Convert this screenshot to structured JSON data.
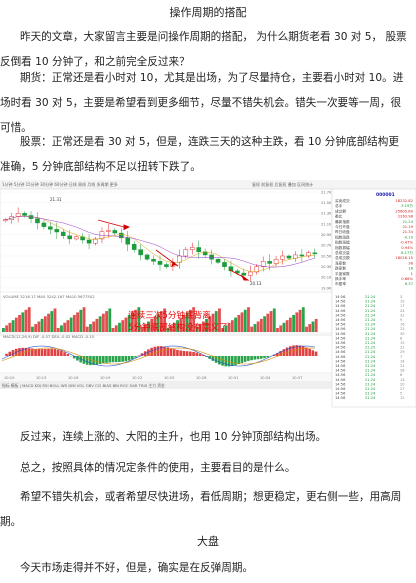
{
  "article": {
    "title": "操作周期的搭配",
    "p1": "昨天的文章，大家留言主要是问操作周期的搭配， 为什么期货老看 30 对 5， 股票反倒看 10 分钟了，和之前完全反过来？",
    "p2": "期货：正常还是看小时对 10，尤其是出场，为了尽量持仓，主要看小时对 10。进场时看 30 对 5，主要是希望看到更多细节，尽量不错失机会。错失一次要等一周，很可惜。",
    "p3": "股票：正常还是看 30 对 5，但是，连跌三天的这种主跌，看 10 分钟底部结构更准确，5 分钟底部结构不足以扭转下跌了。",
    "p4": "反过来，连续上涨的、大阳的主升，也用 10 分钟顶部结构出场。",
    "p5": "总之，按照具体的情况定条件的使用，主要看目的是什么。",
    "p6": "希望不错失机会，或者希望尽快进场，看低周期；想更稳定，更右侧一些，用高周期。",
    "section": "大盘",
    "p7": "今天市场走得并不好，但是，确实是在反弹周期。"
  },
  "chart": {
    "annotation_line1": "连续三次5分钟底背离",
    "annotation_line2": "5分钟底部结构没有意义了",
    "price_high_label": "21.31",
    "price_low_label": "20.13",
    "price_series": [
      21.18,
      21.24,
      21.3,
      21.26,
      21.2,
      21.12,
      21.05,
      21.0,
      20.95,
      20.88,
      20.82,
      20.86,
      20.8,
      20.74,
      20.82,
      20.96,
      20.98,
      20.93,
      20.84,
      20.72,
      20.62,
      20.52,
      20.44,
      20.4,
      20.34,
      20.3,
      20.38,
      20.5,
      20.62,
      20.66,
      20.58,
      20.52,
      20.44,
      20.38,
      20.3,
      20.22,
      20.18,
      20.14,
      20.2,
      20.3,
      20.4,
      20.36,
      20.44,
      20.5,
      20.46,
      20.52,
      20.5,
      20.56,
      20.54
    ],
    "y_ticks": [
      "21.70",
      "21.50",
      "21.30",
      "21.10",
      "20.90",
      "20.70",
      "20.50",
      "20.30",
      "20.10",
      "19.90"
    ],
    "indicator_labels": {
      "volume": "VOLUME  3216.17 MA5 3242.167 MA10 5677502",
      "macd": "MACD(12,26,9)  DIF -0.07  DEA -0.02  MACD -0.10"
    },
    "side_panel": {
      "code": "000001",
      "rows": [
        [
          "买卖成交",
          "18232.82"
        ],
        [
          "总手",
          "3.19万"
        ],
        [
          "成交额",
          "25605.89"
        ],
        [
          "委比",
          "2263.98"
        ],
        [
          "最新指数",
          "21.24"
        ],
        [
          "今日开盘",
          "21.19"
        ],
        [
          "昨日收盘",
          "21.34"
        ],
        [
          "指数涨跌",
          "-0.10"
        ],
        [
          "指数涨幅",
          "-0.47%"
        ],
        [
          "指数振幅",
          "0.94%"
        ],
        [
          "总成交量",
          "8.17万"
        ],
        [
          "总成交额",
          "18016.15"
        ],
        [
          "涨家数",
          "36"
        ],
        [
          "跌家数",
          "18"
        ],
        [
          "平盘家数",
          "1"
        ],
        [
          "换手率",
          "0.86%"
        ],
        [
          "市盈率",
          "6.37"
        ]
      ],
      "tick_time": "14:56",
      "tick_prices": [
        "21.24",
        "21.24",
        "21.24",
        "21.24",
        "21.24",
        "21.24",
        "21.24",
        "21.24",
        "21.24",
        "21.24",
        "21.24",
        "21.25",
        "21.24",
        "21.24",
        "21.24",
        "21.24",
        "21.24",
        "21.24",
        "21.24",
        "21.24",
        "21.24",
        "21.24",
        "21.24"
      ]
    }
  }
}
